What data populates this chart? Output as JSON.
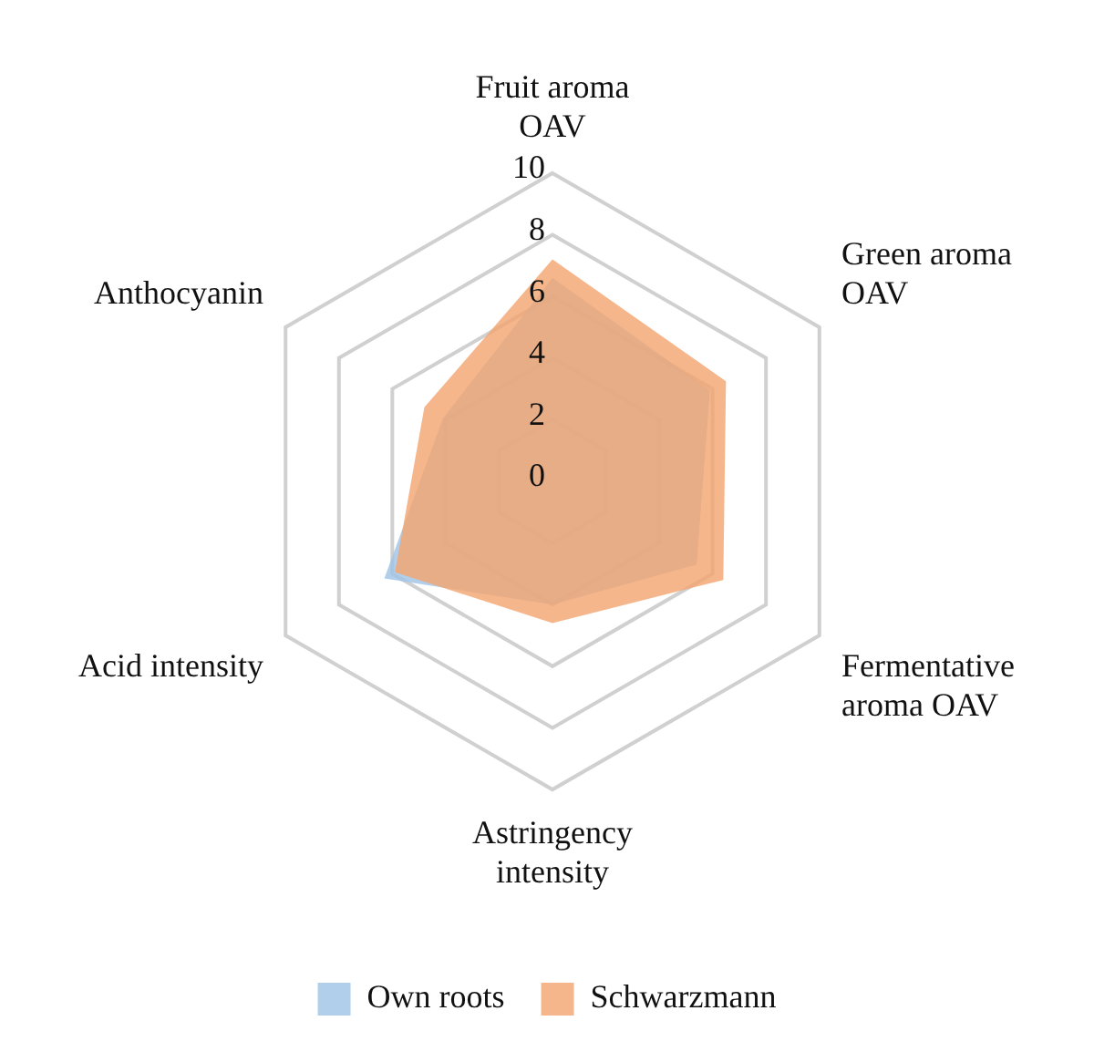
{
  "chart_data": {
    "type": "radar",
    "categories": [
      "Fruit aroma OAV",
      "Green aroma OAV",
      "Fermentative aroma OAV",
      "Astringency intensity",
      "Acid intensity",
      "Anthocyanin"
    ],
    "series": [
      {
        "name": "Own roots",
        "color": "#9dc3e6",
        "values": [
          6.6,
          5.9,
          5.4,
          4.0,
          6.3,
          4.1
        ]
      },
      {
        "name": "Schwarzmann",
        "color": "#f4a46e",
        "values": [
          7.2,
          6.5,
          6.4,
          4.6,
          5.9,
          4.8
        ]
      }
    ],
    "ylim": [
      0,
      10
    ],
    "yticks": [
      0,
      2,
      4,
      6,
      8,
      10
    ],
    "grid": true,
    "legend": "bottom"
  }
}
